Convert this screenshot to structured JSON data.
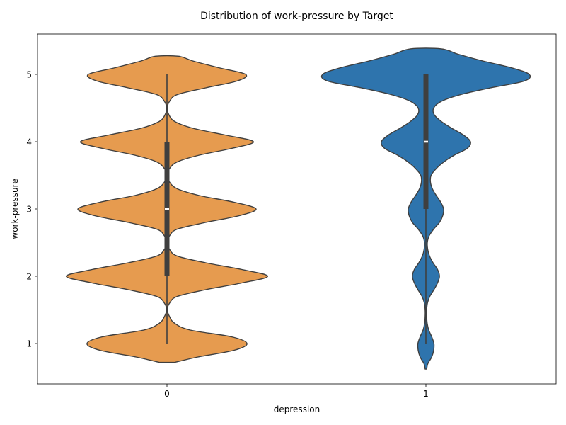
{
  "chart_data": {
    "type": "violin",
    "title": "Distribution of work-pressure by Target",
    "xlabel": "depression",
    "ylabel": "work-pressure",
    "categories": [
      "0",
      "1"
    ],
    "y_ticks": [
      "1",
      "2",
      "3",
      "4",
      "5"
    ],
    "ylim": [
      0.4,
      5.6
    ],
    "grid": false,
    "colors": {
      "0": "#e69b4f",
      "1": "#2e74ad",
      "edge": "#3f3f3f"
    },
    "series": [
      {
        "category": "0",
        "box": {
          "min": 1,
          "q1": 2,
          "median": 3,
          "q3": 4,
          "max": 5
        },
        "density": [
          [
            0.72,
            0.06
          ],
          [
            0.8,
            0.24
          ],
          [
            0.9,
            0.52
          ],
          [
            1.0,
            0.62
          ],
          [
            1.1,
            0.5
          ],
          [
            1.2,
            0.18
          ],
          [
            1.3,
            0.06
          ],
          [
            1.4,
            0.02
          ],
          [
            1.5,
            0.003
          ],
          [
            1.6,
            0.02
          ],
          [
            1.7,
            0.08
          ],
          [
            1.8,
            0.3
          ],
          [
            1.9,
            0.58
          ],
          [
            2.0,
            0.78
          ],
          [
            2.1,
            0.58
          ],
          [
            2.2,
            0.3
          ],
          [
            2.3,
            0.08
          ],
          [
            2.4,
            0.02
          ],
          [
            2.5,
            0.003
          ],
          [
            2.6,
            0.02
          ],
          [
            2.7,
            0.08
          ],
          [
            2.8,
            0.3
          ],
          [
            2.9,
            0.56
          ],
          [
            3.0,
            0.69
          ],
          [
            3.1,
            0.52
          ],
          [
            3.2,
            0.25
          ],
          [
            3.3,
            0.08
          ],
          [
            3.4,
            0.02
          ],
          [
            3.5,
            0.003
          ],
          [
            3.6,
            0.02
          ],
          [
            3.7,
            0.08
          ],
          [
            3.8,
            0.25
          ],
          [
            3.9,
            0.5
          ],
          [
            4.0,
            0.67
          ],
          [
            4.1,
            0.45
          ],
          [
            4.2,
            0.2
          ],
          [
            4.3,
            0.06
          ],
          [
            4.4,
            0.015
          ],
          [
            4.5,
            0.003
          ],
          [
            4.6,
            0.02
          ],
          [
            4.7,
            0.08
          ],
          [
            4.8,
            0.3
          ],
          [
            4.9,
            0.54
          ],
          [
            5.0,
            0.61
          ],
          [
            5.1,
            0.4
          ],
          [
            5.2,
            0.2
          ],
          [
            5.27,
            0.09
          ]
        ]
      },
      {
        "category": "1",
        "box": {
          "min": 1,
          "q1": 3,
          "median": 4,
          "q3": 5,
          "max": 5
        },
        "density": [
          [
            0.62,
            0.006
          ],
          [
            0.7,
            0.015
          ],
          [
            0.8,
            0.045
          ],
          [
            0.9,
            0.06
          ],
          [
            1.0,
            0.062
          ],
          [
            1.1,
            0.045
          ],
          [
            1.2,
            0.022
          ],
          [
            1.3,
            0.01
          ],
          [
            1.4,
            0.006
          ],
          [
            1.5,
            0.006
          ],
          [
            1.6,
            0.012
          ],
          [
            1.7,
            0.03
          ],
          [
            1.8,
            0.062
          ],
          [
            1.9,
            0.09
          ],
          [
            2.0,
            0.105
          ],
          [
            2.1,
            0.09
          ],
          [
            2.2,
            0.055
          ],
          [
            2.3,
            0.028
          ],
          [
            2.4,
            0.014
          ],
          [
            2.5,
            0.011
          ],
          [
            2.6,
            0.025
          ],
          [
            2.7,
            0.06
          ],
          [
            2.8,
            0.105
          ],
          [
            2.9,
            0.13
          ],
          [
            3.0,
            0.137
          ],
          [
            3.1,
            0.115
          ],
          [
            3.2,
            0.08
          ],
          [
            3.3,
            0.05
          ],
          [
            3.4,
            0.035
          ],
          [
            3.5,
            0.04
          ],
          [
            3.6,
            0.08
          ],
          [
            3.7,
            0.14
          ],
          [
            3.8,
            0.22
          ],
          [
            3.9,
            0.32
          ],
          [
            4.0,
            0.345
          ],
          [
            4.1,
            0.29
          ],
          [
            4.2,
            0.2
          ],
          [
            4.3,
            0.12
          ],
          [
            4.4,
            0.065
          ],
          [
            4.5,
            0.06
          ],
          [
            4.6,
            0.12
          ],
          [
            4.7,
            0.27
          ],
          [
            4.8,
            0.5
          ],
          [
            4.9,
            0.76
          ],
          [
            5.0,
            0.8
          ],
          [
            5.1,
            0.66
          ],
          [
            5.2,
            0.44
          ],
          [
            5.3,
            0.25
          ],
          [
            5.38,
            0.12
          ]
        ]
      }
    ]
  }
}
